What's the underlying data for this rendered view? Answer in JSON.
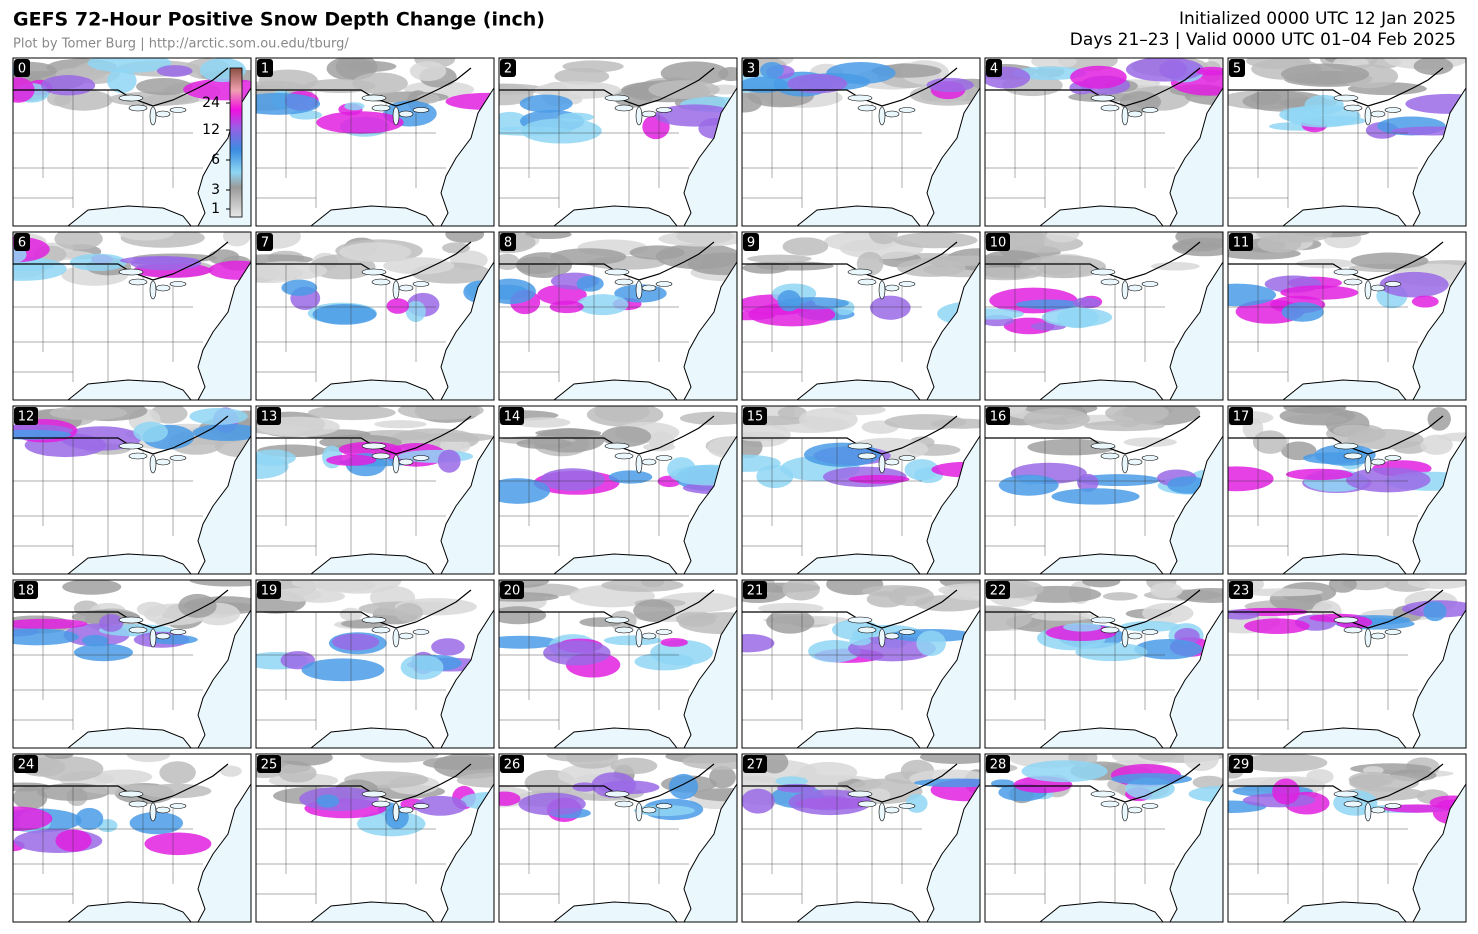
{
  "header": {
    "title": "GEFS 72-Hour Positive Snow Depth Change (inch)",
    "credit": "Plot by Tomer Burg | http://arctic.som.ou.edu/tburg/",
    "initialized": "Initialized 0000 UTC 12 Jan 2025",
    "valid": "Days 21–23 | Valid 0000 UTC 01–04 Feb 2025"
  },
  "colorbar": {
    "ticks": [
      "24",
      "12",
      "6",
      "3",
      "1"
    ]
  },
  "panels": [
    "0",
    "1",
    "2",
    "3",
    "4",
    "5",
    "6",
    "7",
    "8",
    "9",
    "10",
    "11",
    "12",
    "13",
    "14",
    "15",
    "16",
    "17",
    "18",
    "19",
    "20",
    "21",
    "22",
    "23",
    "24",
    "25",
    "26",
    "27",
    "28",
    "29"
  ]
}
